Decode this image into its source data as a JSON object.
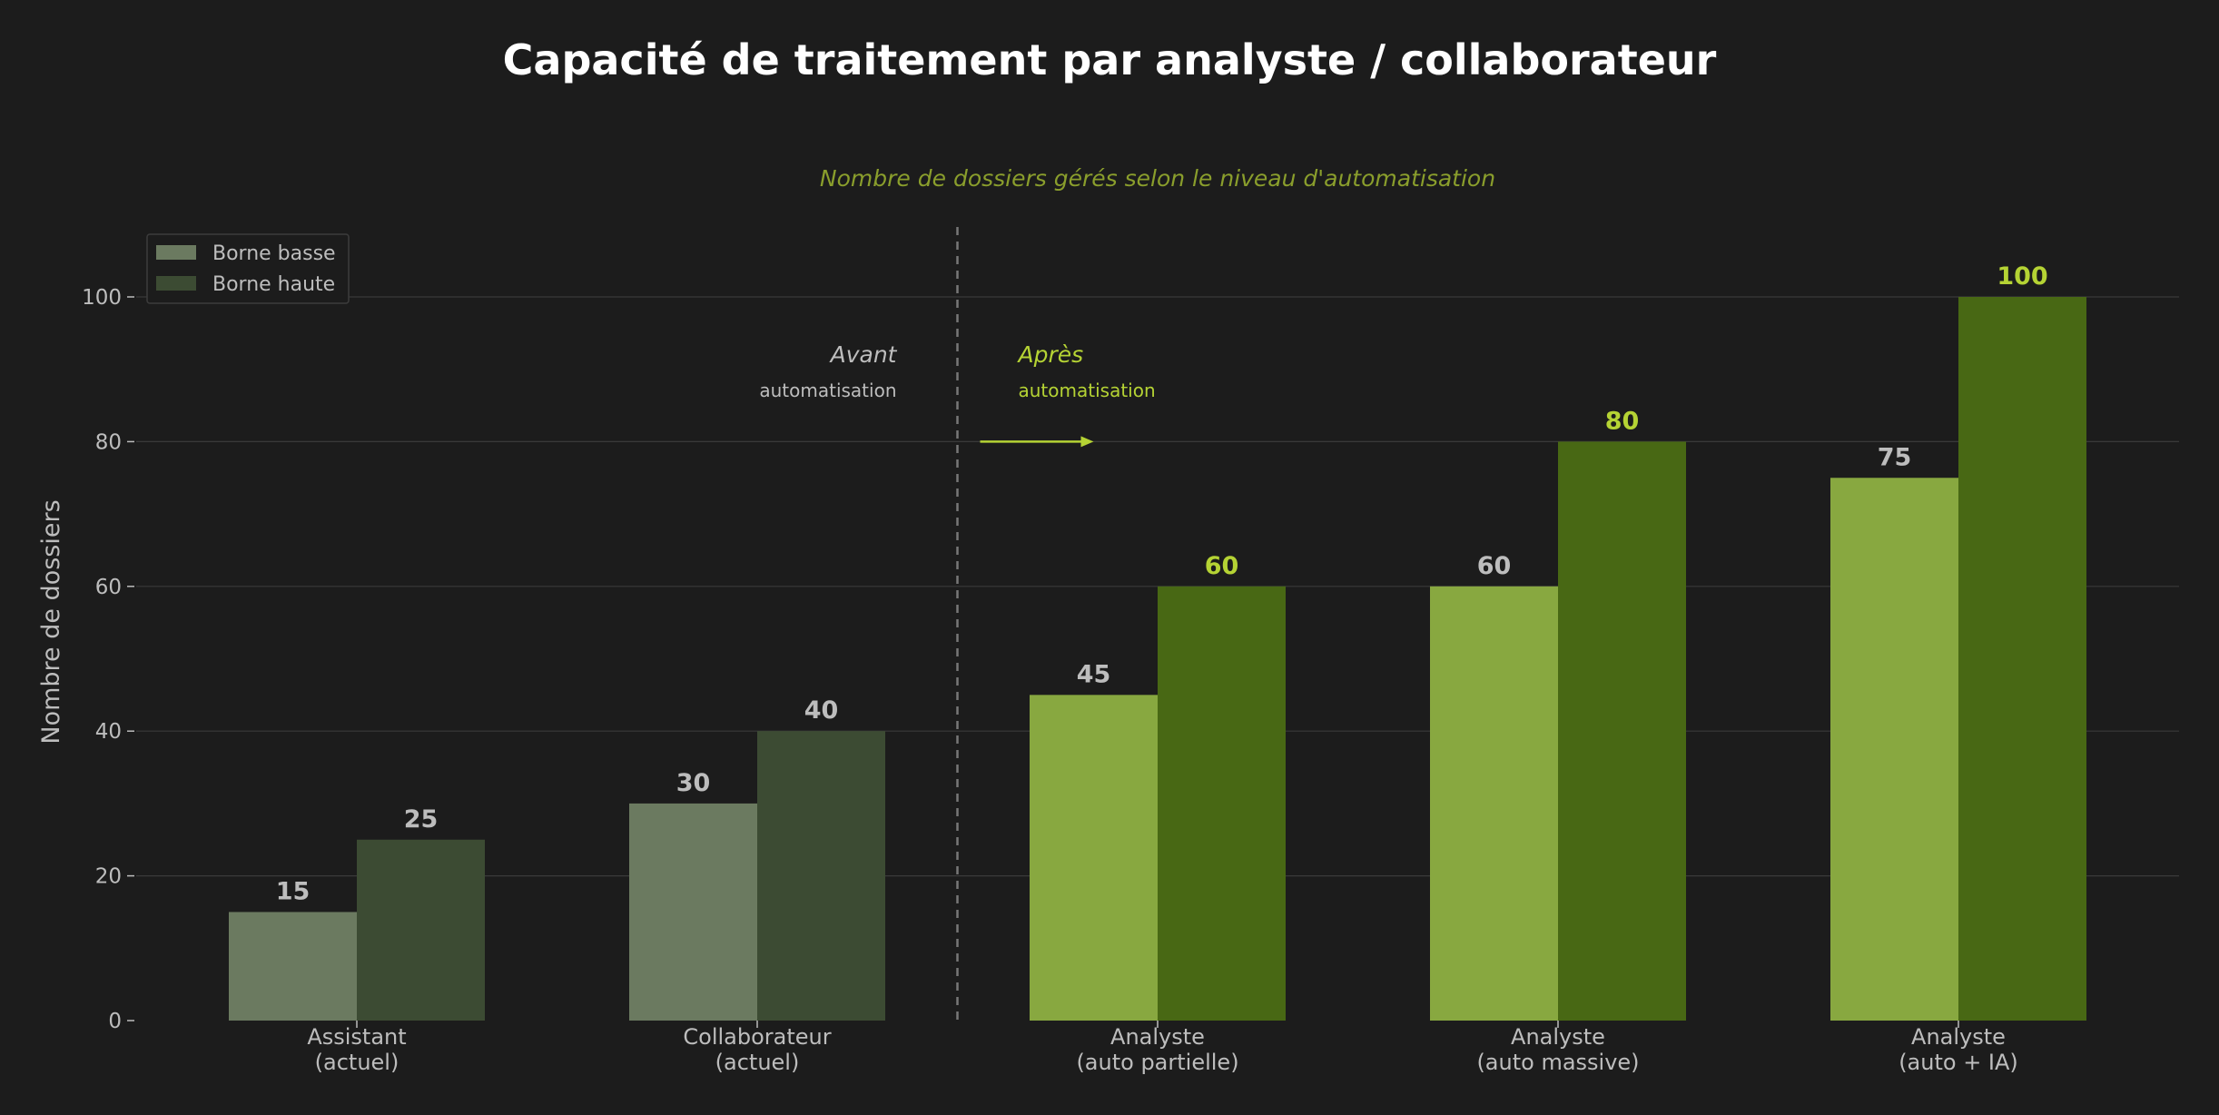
{
  "colors": {
    "background": "#1c1c1c",
    "grid": "#3a3a3a",
    "text": "#bdbdbd",
    "accent": "#b5d334",
    "subtitle": "#8a9e2c",
    "before_low": "#6b7a60",
    "before_high": "#3c4b33",
    "after_low": "#88a840",
    "after_high": "#486814",
    "divider": "#777777"
  },
  "chart_data": {
    "type": "bar",
    "title": "Capacité de traitement par analyste / collaborateur",
    "subtitle": "Nombre de dossiers gérés selon le niveau d'automatisation",
    "xlabel": "",
    "ylabel": "Nombre de dossiers",
    "ylim": [
      0,
      110
    ],
    "yticks": [
      0,
      20,
      40,
      60,
      80,
      100
    ],
    "grid": true,
    "legend_position": "top-left",
    "categories": [
      [
        "Assistant",
        "(actuel)"
      ],
      [
        "Collaborateur",
        "(actuel)"
      ],
      [
        "Analyste",
        "(auto partielle)"
      ],
      [
        "Analyste",
        "(auto massive)"
      ],
      [
        "Analyste",
        "(auto + IA)"
      ]
    ],
    "automated": [
      false,
      false,
      true,
      true,
      true
    ],
    "series": [
      {
        "name": "Borne basse",
        "values": [
          15,
          30,
          45,
          60,
          75
        ]
      },
      {
        "name": "Borne haute",
        "values": [
          25,
          40,
          60,
          80,
          100
        ]
      }
    ],
    "annotations": {
      "before_title": "Avant",
      "before_sub": "automatisation",
      "after_title": "Après",
      "after_sub": "automatisation",
      "divider_between": [
        1,
        2
      ],
      "arrow_y_value": 80
    }
  }
}
